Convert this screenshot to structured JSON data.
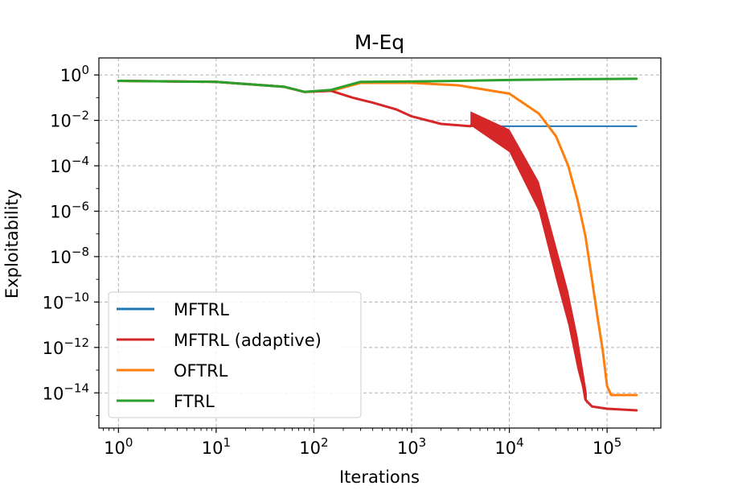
{
  "chart_data": {
    "type": "line",
    "title": "M-Eq",
    "xlabel": "Iterations",
    "ylabel": "Exploitability",
    "xscale": "log",
    "yscale": "log",
    "xlim_exp": [
      -0.2,
      5.55
    ],
    "ylim_exp": [
      -15.55,
      0.75
    ],
    "x_ticks": [
      {
        "base": "10",
        "exp": "0",
        "value": 1
      },
      {
        "base": "10",
        "exp": "1",
        "value": 10
      },
      {
        "base": "10",
        "exp": "2",
        "value": 100
      },
      {
        "base": "10",
        "exp": "3",
        "value": 1000
      },
      {
        "base": "10",
        "exp": "4",
        "value": 10000
      },
      {
        "base": "10",
        "exp": "5",
        "value": 100000
      }
    ],
    "y_ticks": [
      {
        "base": "10",
        "exp": "0",
        "value": 1
      },
      {
        "base": "10",
        "exp": "−2",
        "value": 0.01
      },
      {
        "base": "10",
        "exp": "−4",
        "value": 0.0001
      },
      {
        "base": "10",
        "exp": "−6",
        "value": 1e-06
      },
      {
        "base": "10",
        "exp": "−8",
        "value": 1e-08
      },
      {
        "base": "10",
        "exp": "−10",
        "value": 1e-10
      },
      {
        "base": "10",
        "exp": "−12",
        "value": 1e-12
      },
      {
        "base": "10",
        "exp": "−14",
        "value": 1e-14
      }
    ],
    "grid": true,
    "legend_position": "lower-left",
    "series": [
      {
        "name": "MFTRL",
        "color": "#1f77b4",
        "points": [
          [
            1,
            0.55
          ],
          [
            10,
            0.5
          ],
          [
            50,
            0.3
          ],
          [
            80,
            0.18
          ],
          [
            150,
            0.2
          ],
          [
            250,
            0.1
          ],
          [
            400,
            0.06
          ],
          [
            700,
            0.03
          ],
          [
            1000,
            0.015
          ],
          [
            2000,
            0.007
          ],
          [
            4000,
            0.0055
          ],
          [
            10000,
            0.0055
          ],
          [
            30000,
            0.0055
          ],
          [
            100000,
            0.0055
          ],
          [
            200000,
            0.0055
          ]
        ]
      },
      {
        "name": "MFTRL (adaptive)",
        "color": "#d62728",
        "points": [
          [
            1,
            0.55
          ],
          [
            10,
            0.5
          ],
          [
            50,
            0.3
          ],
          [
            80,
            0.18
          ],
          [
            150,
            0.2
          ],
          [
            250,
            0.1
          ],
          [
            400,
            0.06
          ],
          [
            700,
            0.03
          ],
          [
            1000,
            0.015
          ],
          [
            2000,
            0.007
          ],
          [
            4000,
            0.0055
          ],
          [
            4500,
            0.01
          ],
          [
            8000,
            0.004
          ],
          [
            12000,
            0.0003
          ],
          [
            20000,
            5e-06
          ],
          [
            30000,
            8e-09
          ],
          [
            40000,
            5e-11
          ],
          [
            50000,
            5e-13
          ],
          [
            60000,
            5e-15
          ],
          [
            70000,
            2.5e-15
          ],
          [
            100000,
            2e-15
          ],
          [
            200000,
            1.7e-15
          ]
        ],
        "band_upper": [
          [
            4000,
            0.025
          ],
          [
            10000,
            0.004
          ],
          [
            20000,
            2e-05
          ],
          [
            30000,
            3e-08
          ],
          [
            40000,
            3e-10
          ],
          [
            50000,
            3e-12
          ],
          [
            62000,
            1e-14
          ]
        ],
        "band_lower": [
          [
            4000,
            0.006
          ],
          [
            10000,
            0.0004
          ],
          [
            20000,
            1e-06
          ],
          [
            30000,
            1e-09
          ],
          [
            40000,
            1e-11
          ],
          [
            50000,
            1e-13
          ],
          [
            62000,
            3e-15
          ]
        ]
      },
      {
        "name": "OFTRL",
        "color": "#ff7f0e",
        "points": [
          [
            1,
            0.55
          ],
          [
            10,
            0.5
          ],
          [
            50,
            0.3
          ],
          [
            80,
            0.18
          ],
          [
            150,
            0.2
          ],
          [
            300,
            0.45
          ],
          [
            1000,
            0.45
          ],
          [
            3000,
            0.35
          ],
          [
            10000,
            0.15
          ],
          [
            20000,
            0.02
          ],
          [
            30000,
            0.002
          ],
          [
            40000,
            0.0001
          ],
          [
            50000,
            3e-06
          ],
          [
            60000,
            8e-08
          ],
          [
            70000,
            1e-09
          ],
          [
            80000,
            2e-11
          ],
          [
            90000,
            8e-13
          ],
          [
            100000,
            2e-14
          ],
          [
            110000,
            8e-15
          ],
          [
            150000,
            8e-15
          ],
          [
            200000,
            8e-15
          ]
        ]
      },
      {
        "name": "FTRL",
        "color": "#2ca02c",
        "points": [
          [
            1,
            0.55
          ],
          [
            10,
            0.5
          ],
          [
            50,
            0.3
          ],
          [
            80,
            0.18
          ],
          [
            150,
            0.22
          ],
          [
            300,
            0.5
          ],
          [
            1000,
            0.52
          ],
          [
            3000,
            0.55
          ],
          [
            10000,
            0.6
          ],
          [
            50000,
            0.65
          ],
          [
            200000,
            0.68
          ]
        ]
      }
    ]
  }
}
